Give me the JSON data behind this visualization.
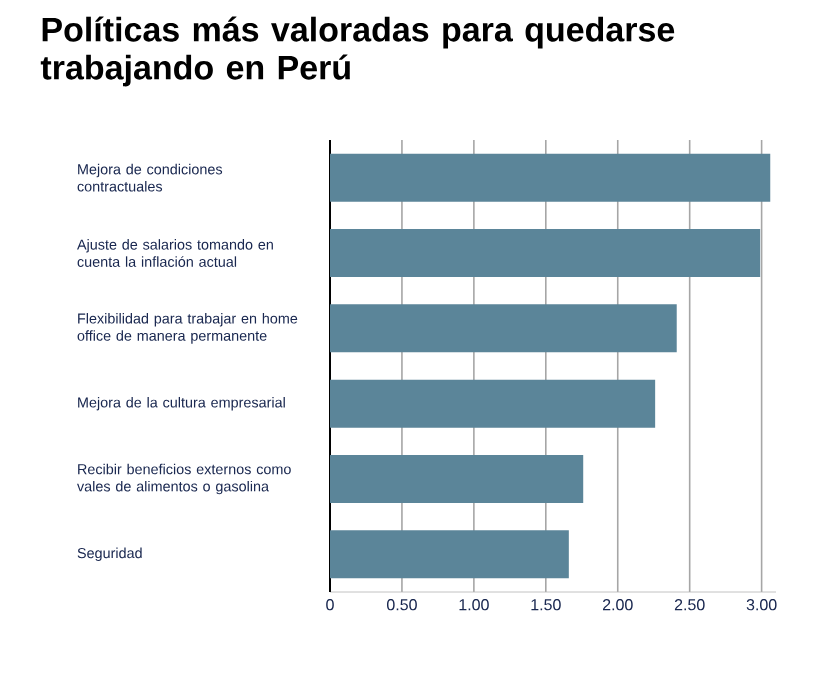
{
  "chart_data": {
    "type": "bar",
    "orientation": "horizontal",
    "title": "Políticas más valoradas para quedarse trabajando en Perú",
    "categories": [
      "Mejora de condiciones contractuales",
      "Ajuste de salarios tomando en cuenta la inflación actual",
      "Flexibilidad para trabajar en home office de manera permanente",
      "Mejora de la cultura empresarial",
      "Recibir beneficios externos como vales de alimentos o gasolina",
      "Seguridad"
    ],
    "values": [
      3.06,
      2.99,
      2.41,
      2.26,
      1.76,
      1.66
    ],
    "color": "#5b8599",
    "xlim": [
      0,
      3.1
    ],
    "xticks": [
      0,
      {
        "value": 0.5,
        "label": "0.50"
      },
      {
        "value": 1,
        "label": "1.00"
      },
      {
        "value": 1.5,
        "label": "1.50"
      },
      {
        "value": 2,
        "label": "2.00"
      },
      {
        "value": 2.5,
        "label": "2.50"
      },
      {
        "value": 3,
        "label": "3.00"
      }
    ],
    "grid": "x"
  }
}
